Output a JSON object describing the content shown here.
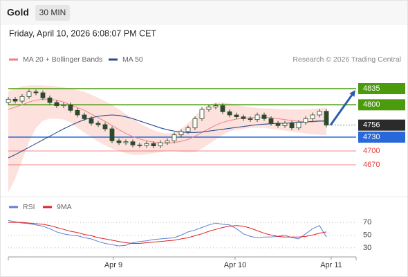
{
  "header": {
    "symbol": "Gold",
    "timeframe": "30 MIN",
    "datetime": "Friday, April 10, 2026 6:08:07 PM CET",
    "source": "Research © 2026 Trading Central"
  },
  "chart_data": [
    {
      "type": "candlestick",
      "x": [
        0,
        1,
        2,
        3,
        4,
        5,
        6,
        7,
        8,
        9,
        10,
        11,
        12,
        13,
        14,
        15,
        16,
        17,
        18,
        19,
        20,
        21,
        22,
        23,
        24,
        25,
        26,
        27,
        28,
        29,
        30,
        31,
        32,
        33,
        34,
        35,
        36,
        37,
        38,
        39,
        40,
        41,
        42,
        43,
        44,
        45,
        46
      ],
      "open": [
        4805,
        4812,
        4808,
        4818,
        4828,
        4826,
        4815,
        4805,
        4798,
        4800,
        4788,
        4778,
        4770,
        4760,
        4757,
        4748,
        4722,
        4718,
        4720,
        4713,
        4712,
        4716,
        4711,
        4718,
        4722,
        4735,
        4742,
        4750,
        4770,
        4790,
        4795,
        4798,
        4785,
        4778,
        4774,
        4770,
        4768,
        4778,
        4770,
        4760,
        4755,
        4760,
        4750,
        4762,
        4770,
        4778,
        4786
      ],
      "high": [
        4817,
        4817,
        4823,
        4833,
        4833,
        4831,
        4820,
        4810,
        4805,
        4805,
        4793,
        4783,
        4775,
        4765,
        4762,
        4753,
        4727,
        4725,
        4725,
        4718,
        4721,
        4721,
        4723,
        4727,
        4740,
        4747,
        4755,
        4775,
        4795,
        4800,
        4803,
        4803,
        4790,
        4783,
        4779,
        4775,
        4783,
        4783,
        4775,
        4765,
        4765,
        4765,
        4767,
        4775,
        4783,
        4791,
        4791
      ],
      "low": [
        4800,
        4803,
        4803,
        4813,
        4821,
        4810,
        4800,
        4793,
        4793,
        4783,
        4773,
        4765,
        4755,
        4752,
        4743,
        4717,
        4713,
        4713,
        4708,
        4707,
        4707,
        4706,
        4706,
        4713,
        4717,
        4730,
        4737,
        4745,
        4765,
        4785,
        4790,
        4780,
        4773,
        4769,
        4765,
        4763,
        4763,
        4765,
        4755,
        4750,
        4750,
        4745,
        4745,
        4757,
        4765,
        4773,
        4751
      ],
      "close": [
        4812,
        4808,
        4818,
        4828,
        4826,
        4815,
        4805,
        4798,
        4800,
        4788,
        4778,
        4770,
        4760,
        4757,
        4748,
        4722,
        4718,
        4720,
        4713,
        4712,
        4716,
        4711,
        4718,
        4722,
        4735,
        4742,
        4750,
        4770,
        4790,
        4795,
        4798,
        4785,
        4778,
        4774,
        4770,
        4768,
        4778,
        4770,
        4760,
        4755,
        4760,
        4750,
        4762,
        4770,
        4778,
        4786,
        4756
      ],
      "up_color": "#ffffff",
      "down_color": "#2d4a2d",
      "last_color": "#2b2b2b",
      "series": [
        {
          "name": "MA 20 + Bollinger Bands",
          "color": "#f08080",
          "band_color": "#fcd9d4",
          "values": [
            4790,
            4795,
            4800,
            4806,
            4810,
            4812,
            4812,
            4810,
            4806,
            4800,
            4794,
            4788,
            4780,
            4772,
            4764,
            4755,
            4746,
            4738,
            4731,
            4726,
            4722,
            4719,
            4717,
            4717,
            4718,
            4721,
            4725,
            4732,
            4740,
            4748,
            4756,
            4762,
            4766,
            4769,
            4771,
            4772,
            4773,
            4773,
            4772,
            4770,
            4768,
            4766,
            4764,
            4763,
            4763,
            4764,
            4764
          ],
          "upper": [
            4830,
            4835,
            4840,
            4842,
            4842,
            4842,
            4841,
            4840,
            4838,
            4835,
            4832,
            4828,
            4822,
            4815,
            4808,
            4800,
            4790,
            4780,
            4770,
            4760,
            4752,
            4745,
            4740,
            4738,
            4740,
            4748,
            4760,
            4775,
            4790,
            4800,
            4805,
            4805,
            4803,
            4800,
            4797,
            4795,
            4793,
            4792,
            4792,
            4791,
            4790,
            4790,
            4790,
            4790,
            4791,
            4792,
            4794
          ],
          "lower": [
            4610,
            4640,
            4680,
            4720,
            4750,
            4765,
            4770,
            4770,
            4768,
            4762,
            4750,
            4740,
            4730,
            4720,
            4712,
            4705,
            4700,
            4695,
            4692,
            4692,
            4693,
            4695,
            4698,
            4700,
            4700,
            4698,
            4697,
            4698,
            4705,
            4715,
            4725,
            4735,
            4742,
            4746,
            4748,
            4750,
            4750,
            4750,
            4748,
            4746,
            4744,
            4742,
            4740,
            4738,
            4736,
            4735,
            4734
          ]
        },
        {
          "name": "MA 50",
          "color": "#2a4a8a",
          "values": [
            4685,
            4692,
            4700,
            4708,
            4716,
            4724,
            4732,
            4740,
            4748,
            4755,
            4762,
            4768,
            4772,
            4775,
            4777,
            4778,
            4777,
            4774,
            4770,
            4765,
            4760,
            4755,
            4750,
            4746,
            4743,
            4741,
            4740,
            4740,
            4741,
            4743,
            4745,
            4747,
            4749,
            4751,
            4753,
            4755,
            4757,
            4758,
            4759,
            4760,
            4760,
            4761,
            4762,
            4763,
            4764,
            4765,
            4765
          ]
        }
      ],
      "levels": [
        {
          "value": 4835,
          "color": "#4c9a0e",
          "boxed": true
        },
        {
          "value": 4800,
          "color": "#4c9a0e",
          "boxed": true
        },
        {
          "value": 4730,
          "color": "#2868d8",
          "boxed": true
        },
        {
          "value": 4700,
          "color": "#e83a3a",
          "boxed": false
        },
        {
          "value": 4670,
          "color": "#e83a3a",
          "boxed": false
        }
      ],
      "arrow_color": "#2a5db0",
      "xlim": [
        0,
        50.5
      ],
      "ylim": [
        4604,
        4877
      ],
      "xticks": [
        {
          "value": 15.2,
          "label": "Apr 9"
        },
        {
          "value": 32.8,
          "label": "Apr 10"
        },
        {
          "value": 46.7,
          "label": "Apr 11"
        }
      ]
    },
    {
      "type": "line",
      "ylim": [
        19,
        93
      ],
      "yticks": [
        70,
        50,
        30
      ],
      "grid": true,
      "series": [
        {
          "name": "RSI",
          "color": "#5b7fd6",
          "values": [
            73,
            71,
            69,
            68,
            66,
            64,
            60,
            55,
            52,
            50,
            49,
            46,
            44,
            40,
            37,
            35,
            33,
            34,
            38,
            40,
            41,
            43,
            44,
            45,
            46,
            50,
            55,
            58,
            62,
            66,
            69,
            67,
            66,
            60,
            52,
            48,
            46,
            47,
            47,
            48,
            50,
            46,
            44,
            52,
            60,
            65,
            47
          ]
        },
        {
          "name": "9MA",
          "color": "#e02020",
          "values": [
            70,
            70,
            70,
            69,
            68,
            67,
            65,
            62,
            59,
            56,
            54,
            51,
            49,
            46,
            44,
            42,
            40,
            38,
            37,
            37,
            38,
            39,
            40,
            41,
            42,
            44,
            46,
            49,
            52,
            56,
            59,
            62,
            64,
            65,
            64,
            61,
            57,
            53,
            50,
            48,
            47,
            47,
            47,
            48,
            50,
            53,
            55
          ]
        }
      ]
    }
  ]
}
